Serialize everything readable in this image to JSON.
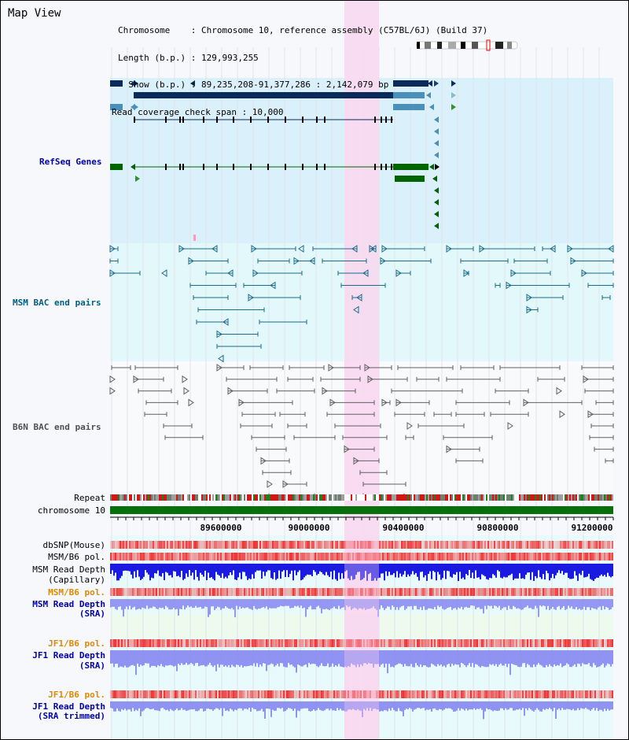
{
  "view": {
    "title": "Map View",
    "info": {
      "chromosome": "Chromosome    : Chromosome 10, reference assembly (C57BL/6J) (Build 37)",
      "length": "Length (b.p.) : 129,993,255",
      "show": "  Show (b.p.) : 89,235,208-91,377,286 : 2,142,079 bp",
      "coverage": "Read coverage check span : 10,000"
    }
  },
  "tracks": {
    "refseq": {
      "label": "RefSeq Genes",
      "color": "#0000aa"
    },
    "msm_bac": {
      "label": "MSM BAC end pairs",
      "color": "#006080"
    },
    "b6n_bac": {
      "label": "B6N BAC end pairs",
      "color": "#505050"
    },
    "repeat": {
      "label": "Repeat"
    },
    "chromosome": {
      "label": "chromosome 10"
    },
    "dbsnp": {
      "label": "dbSNP(Mouse)"
    },
    "msm_pol": {
      "label": "MSM/B6 pol."
    },
    "msm_depth_cap": {
      "label1": "MSM Read Depth",
      "label2": "(Capillary)"
    },
    "msm_pol2": {
      "label": "MSM/B6 pol."
    },
    "msm_depth_sra": {
      "label1": "MSM Read Depth",
      "label2": "(SRA)"
    },
    "jf1_pol": {
      "label": "JF1/B6 pol."
    },
    "jf1_depth": {
      "label1": "JF1 Read Depth",
      "label2": "(SRA)"
    },
    "jf1_pol2": {
      "label": "JF1/B6 pol."
    },
    "jf1_depth_trim": {
      "label1": "JF1 Read Depth",
      "label2": "(SRA trimmed)"
    }
  },
  "axis": {
    "ticks": [
      "89600000",
      "90000000",
      "90400000",
      "90800000",
      "91200000"
    ]
  },
  "colors": {
    "highlight": "#f8d8f0",
    "refseq_bg": "#daf0fa",
    "msm_bg": "#e2f8fa",
    "b6n_bg": "#f8fafc",
    "gene_dark": "#0a2a5a",
    "gene_light": "#4a90b8",
    "gene_green": "#006400",
    "msm_feature": "#1a6a8a",
    "b6n_feature": "#606060",
    "pol_red": "#ee3333",
    "depth_blue": "#1a1ae0",
    "depth_sra": "#8080f0",
    "orange_label": "#e08800"
  }
}
